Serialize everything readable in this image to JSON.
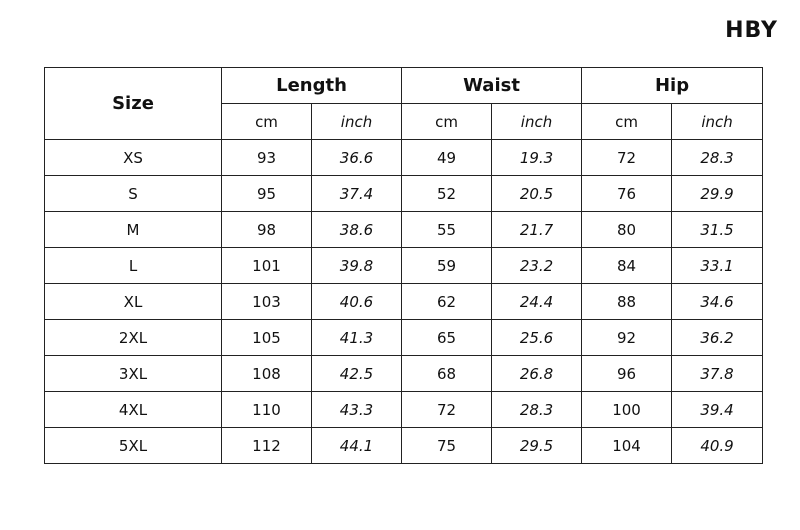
{
  "brand": "HBY",
  "table": {
    "size_header": "Size",
    "groups": [
      "Length",
      "Waist",
      "Hip"
    ],
    "units": [
      "cm",
      "inch",
      "cm",
      "inch",
      "cm",
      "inch"
    ],
    "rows": [
      [
        "XS",
        "93",
        "36.6",
        "49",
        "19.3",
        "72",
        "28.3"
      ],
      [
        "S",
        "95",
        "37.4",
        "52",
        "20.5",
        "76",
        "29.9"
      ],
      [
        "M",
        "98",
        "38.6",
        "55",
        "21.7",
        "80",
        "31.5"
      ],
      [
        "L",
        "101",
        "39.8",
        "59",
        "23.2",
        "84",
        "33.1"
      ],
      [
        "XL",
        "103",
        "40.6",
        "62",
        "24.4",
        "88",
        "34.6"
      ],
      [
        "2XL",
        "105",
        "41.3",
        "65",
        "25.6",
        "92",
        "36.2"
      ],
      [
        "3XL",
        "108",
        "42.5",
        "68",
        "26.8",
        "96",
        "37.8"
      ],
      [
        "4XL",
        "110",
        "43.3",
        "72",
        "28.3",
        "100",
        "39.4"
      ],
      [
        "5XL",
        "112",
        "44.1",
        "75",
        "29.5",
        "104",
        "40.9"
      ]
    ]
  }
}
